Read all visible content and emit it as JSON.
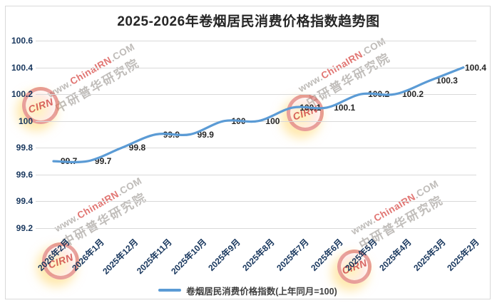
{
  "title": "2025-2026年卷烟居民消费价格指数趋势图",
  "legend": {
    "label": "卷烟居民消费价格指数(上年同月=100)"
  },
  "watermark": {
    "logo_text": "CIRN",
    "url_prefix": "www.",
    "url_highlight": "ChinaIRN",
    "url_suffix": ".COM",
    "org": "中研普华研究院"
  },
  "colors": {
    "line": "#5B9BD5",
    "gridline": "#d9d9d9",
    "tick_label": "#17365d",
    "data_label": "#262626"
  },
  "chart_data": {
    "type": "line",
    "smooth": true,
    "title": "2025-2026年卷烟居民消费价格指数趋势图",
    "categories": [
      "2026年2月",
      "2026年1月",
      "2025年12月",
      "2025年11月",
      "2025年10月",
      "2025年9月",
      "2025年8月",
      "2025年7月",
      "2025年6月",
      "2025年5月",
      "2025年4月",
      "2025年3月",
      "2025年2月"
    ],
    "series": [
      {
        "name": "卷烟居民消费价格指数(上年同月=100)",
        "values": [
          99.7,
          99.7,
          99.8,
          99.9,
          99.9,
          100,
          100,
          100.1,
          100.1,
          100.2,
          100.2,
          100.3,
          100.4
        ]
      }
    ],
    "point_labels": [
      "99.7",
      "99.7",
      "99.8",
      "99.9",
      "99.9",
      "100",
      "100",
      "100.1",
      "100.1",
      "100.2",
      "100.2",
      "100.3",
      "100.4"
    ],
    "y_ticks": [
      "100.6",
      "100.4",
      "100.2",
      "100",
      "99.8",
      "99.6",
      "99.4",
      "99.2"
    ],
    "ylim": [
      99.2,
      100.6
    ],
    "xlabel": "",
    "ylabel": "",
    "grid": "horizontal",
    "legend_position": "bottom"
  }
}
